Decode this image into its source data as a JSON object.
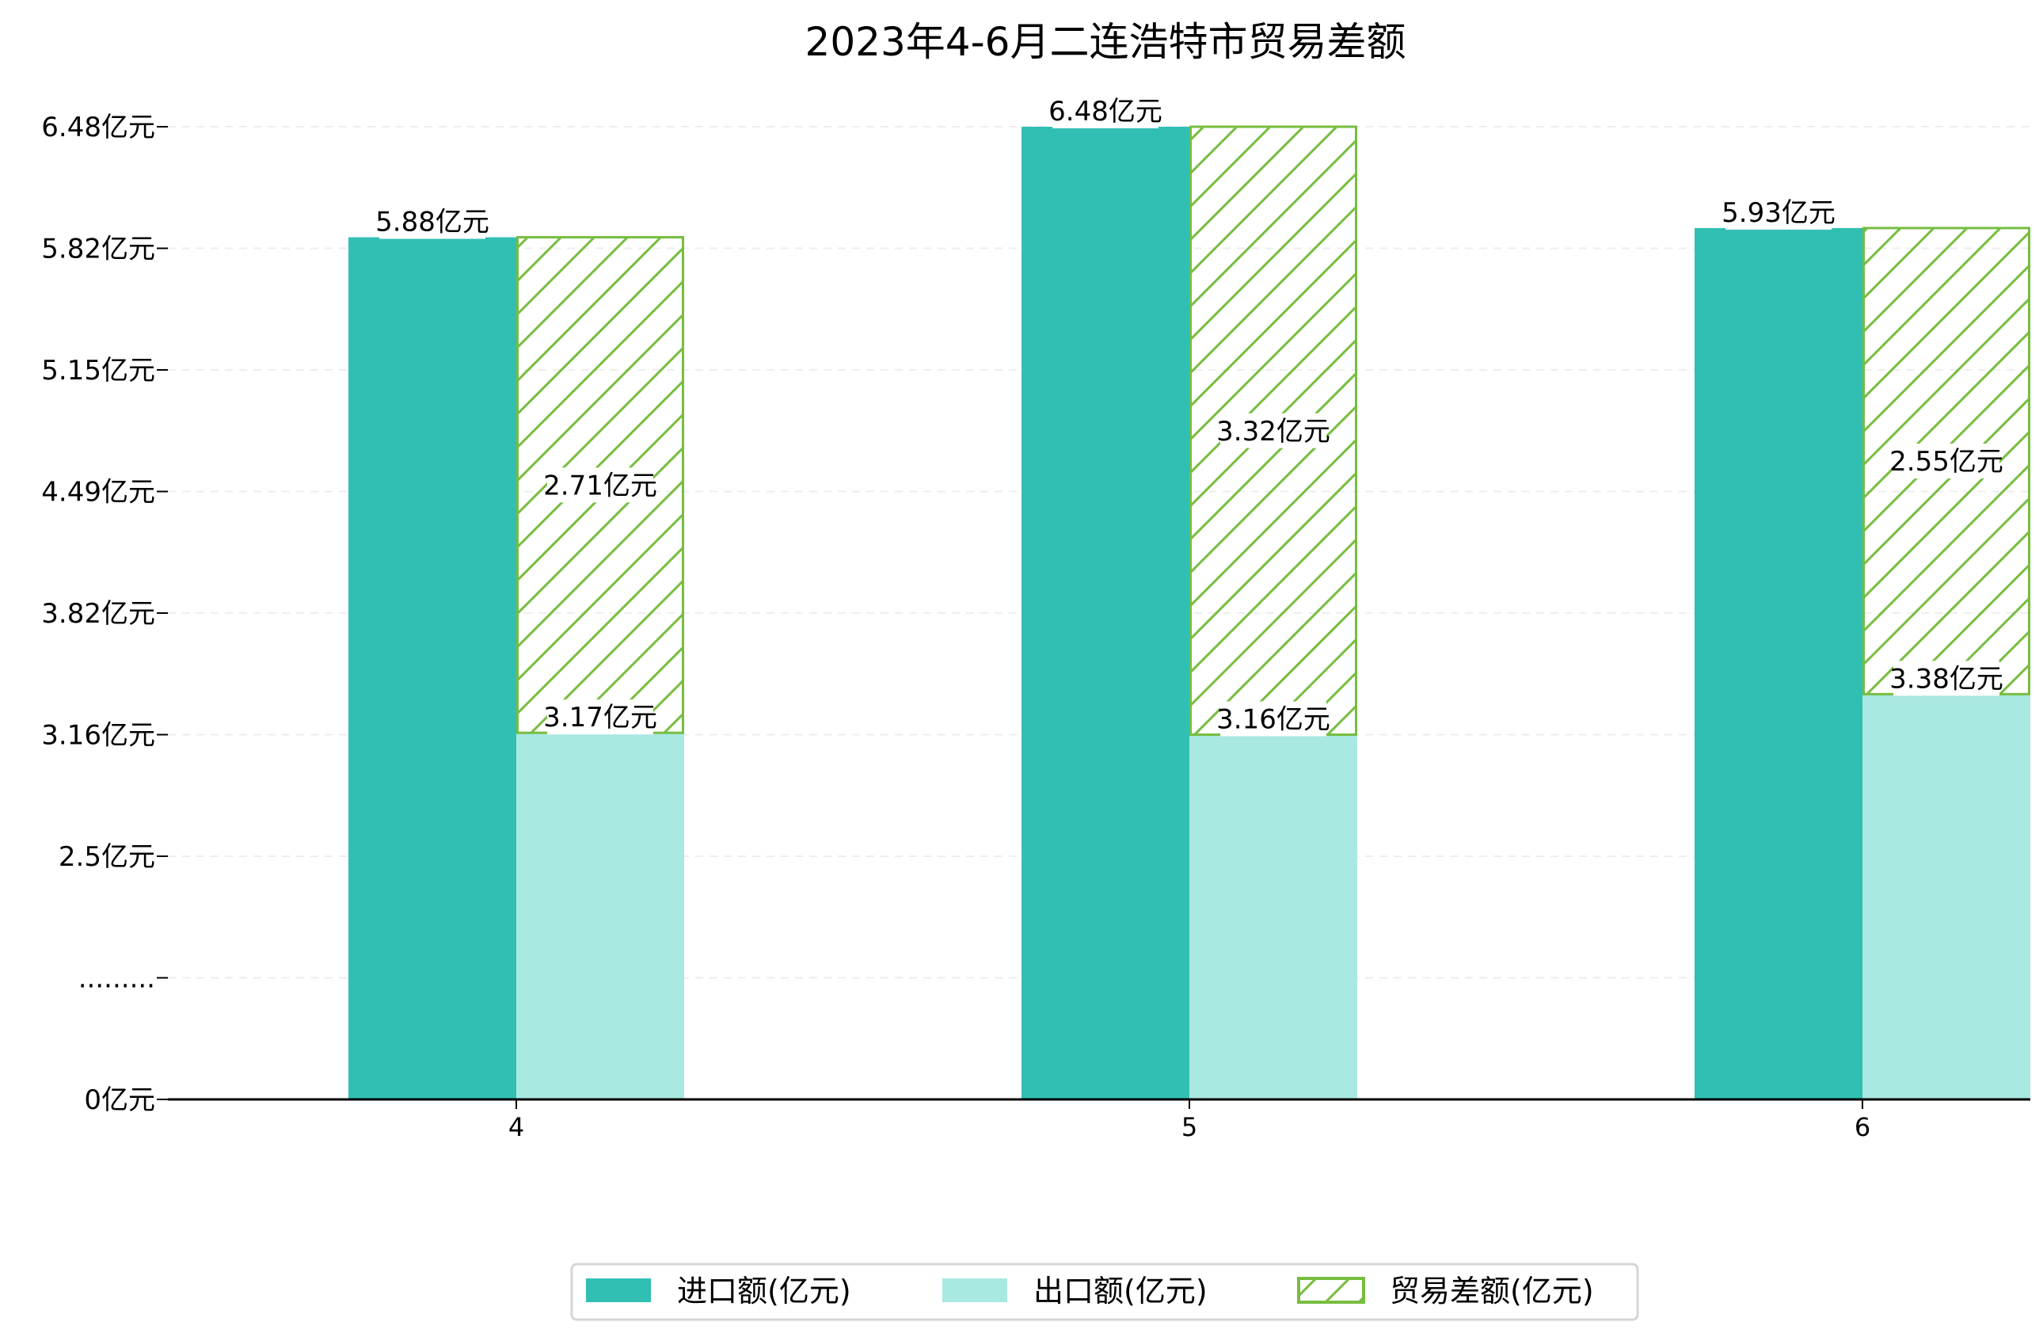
{
  "chart_data": {
    "type": "bar",
    "title": "2023年4-6月二连浩特市贸易差额",
    "xlabel": "",
    "ylabel": "",
    "categories": [
      "4",
      "5",
      "6"
    ],
    "series": [
      {
        "name": "进口额(亿元)",
        "values": [
          5.88,
          6.48,
          5.93
        ],
        "color": "#31bfb3",
        "labels": [
          "5.88亿元",
          "6.48亿元",
          "5.93亿元"
        ]
      },
      {
        "name": "出口额(亿元)",
        "values": [
          3.17,
          3.16,
          3.38
        ],
        "color": "#aae8e2",
        "labels": [
          "3.17亿元",
          "3.16亿元",
          "3.38亿元"
        ]
      },
      {
        "name": "贸易差额(亿元)",
        "values": [
          2.71,
          3.32,
          2.55
        ],
        "color": "#77bd40",
        "stacked_on": "出口额(亿元)",
        "hatch": "/",
        "labels": [
          "2.71亿元",
          "3.32亿元",
          "2.55亿元"
        ]
      }
    ],
    "yticks": [
      {
        "value": 0,
        "label": "0亿元"
      },
      {
        "value": null,
        "label": "........."
      },
      {
        "value": 2.5,
        "label": "2.5亿元"
      },
      {
        "value": 3.16,
        "label": "3.16亿元"
      },
      {
        "value": 3.82,
        "label": "3.82亿元"
      },
      {
        "value": 4.49,
        "label": "4.49亿元"
      },
      {
        "value": 5.15,
        "label": "5.15亿元"
      },
      {
        "value": 5.82,
        "label": "5.82亿元"
      },
      {
        "value": 6.48,
        "label": "6.48亿元"
      }
    ],
    "ylim": [
      0,
      6.48
    ],
    "y_axis_break": true,
    "grid": "horizontal dashed",
    "legend_position": "bottom-center"
  }
}
